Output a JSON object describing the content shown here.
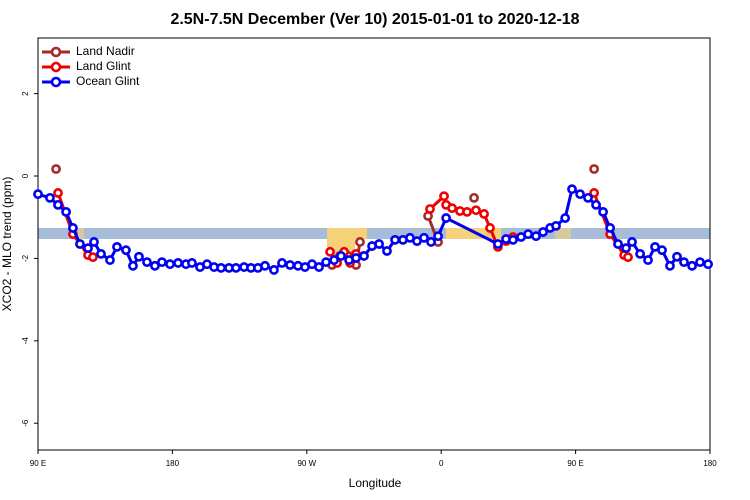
{
  "chart_data": {
    "type": "line",
    "title": "2.5N-7.5N December (Ver 10)   2015-01-01 to 2020-12-18",
    "x_label": "Longitude",
    "y_label": "XCO2 - MLO trend (ppm)",
    "xlim": [
      90,
      540
    ],
    "ylim": [
      -6.65,
      3.35
    ],
    "xticks": [
      {
        "value": 90,
        "label": "90 E"
      },
      180,
      {
        "value": 270,
        "label": "90 W"
      },
      {
        "value": 360,
        "label": "0"
      },
      {
        "value": 450,
        "label": "90 E"
      },
      {
        "value": 540,
        "label": "180"
      }
    ],
    "yticks": [
      -6,
      -4,
      -2,
      0,
      2
    ],
    "legend": "upper left",
    "series": [
      {
        "name": "Land Nadir",
        "color": "#a52a2a",
        "x": [
          102.1,
          null,
          286.9,
          292.2,
          297.6,
          303,
          305.6,
          null,
          351.2,
          357.9,
          null,
          382,
          null,
          462.4
        ],
        "values": [
          0.17,
          null,
          -2.16,
          -1.94,
          -1.94,
          -2.16,
          -1.6,
          null,
          -0.97,
          -1.6,
          null,
          -0.53,
          null,
          0.17
        ]
      },
      {
        "name": "Land Glint",
        "color": "#ee0000",
        "x": [
          103.4,
          113.4,
          123.5,
          126.8,
          null,
          285.6,
          290.3,
          295,
          299,
          303,
          null,
          352.5,
          361.9,
          363.3,
          367.3,
          372.6,
          377.3,
          383.3,
          388.7,
          392.7,
          398,
          403.4,
          408.1,
          null,
          462.4,
          473.1,
          482.5,
          485.1
        ],
        "values": [
          -0.41,
          -1.41,
          -1.92,
          -1.97,
          null,
          -1.84,
          -2.11,
          -1.84,
          -2.11,
          -1.89,
          null,
          -0.8,
          -0.49,
          -0.7,
          -0.78,
          -0.85,
          -0.87,
          -0.83,
          -0.92,
          -1.26,
          -1.72,
          -1.58,
          -1.48,
          null,
          -0.41,
          -1.41,
          -1.92,
          -1.97
        ]
      },
      {
        "name": "Ocean Glint",
        "color": "#0000ee",
        "x": [
          90,
          98,
          103.4,
          108.8,
          113.4,
          118.1,
          123.5,
          127.5,
          132.2,
          138.2,
          142.9,
          148.9,
          153.6,
          157.6,
          163,
          168.3,
          173,
          178.4,
          183.8,
          189.1,
          193.1,
          198.5,
          203.2,
          207.9,
          212.6,
          217.9,
          222.6,
          228,
          232.6,
          237.3,
          242,
          248,
          253.4,
          258.8,
          264.1,
          268.8,
          273.5,
          278.2,
          282.9,
          288.3,
          292.9,
          298.3,
          303,
          308.3,
          313.7,
          318.4,
          323.7,
          329.1,
          334.4,
          339.1,
          343.8,
          348.5,
          353.2,
          357.9,
          363.3,
          398,
          403.4,
          408.1,
          413.5,
          418.2,
          423.5,
          428.2,
          432.9,
          436.9,
          443,
          447.6,
          453,
          458.3,
          463.7,
          468.4,
          473.1,
          478.4,
          483.8,
          487.8,
          493.2,
          498.5,
          503.2,
          507.9,
          513.2,
          517.9,
          522.6,
          528,
          533.3,
          538.7
        ],
        "values": [
          -0.44,
          -0.53,
          -0.7,
          -0.87,
          -1.26,
          -1.65,
          -1.75,
          -1.6,
          -1.89,
          -2.04,
          -1.72,
          -1.8,
          -2.18,
          -1.96,
          -2.09,
          -2.18,
          -2.09,
          -2.14,
          -2.11,
          -2.14,
          -2.11,
          -2.21,
          -2.14,
          -2.21,
          -2.23,
          -2.23,
          -2.23,
          -2.21,
          -2.23,
          -2.23,
          -2.18,
          -2.28,
          -2.11,
          -2.16,
          -2.18,
          -2.21,
          -2.14,
          -2.21,
          -2.09,
          -2.04,
          -1.94,
          -2.04,
          -1.99,
          -1.94,
          -1.7,
          -1.65,
          -1.82,
          -1.55,
          -1.55,
          -1.5,
          -1.58,
          -1.5,
          -1.6,
          -1.46,
          -1.02,
          -1.65,
          -1.53,
          -1.55,
          -1.48,
          -1.41,
          -1.46,
          -1.36,
          -1.26,
          -1.21,
          -1.02,
          -0.32,
          -0.44,
          -0.53,
          -0.7,
          -0.87,
          -1.26,
          -1.65,
          -1.75,
          -1.6,
          -1.89,
          -2.04,
          -1.72,
          -1.8,
          -2.18,
          -1.96,
          -2.09,
          -2.18,
          -2.09,
          -2.14
        ]
      }
    ]
  }
}
